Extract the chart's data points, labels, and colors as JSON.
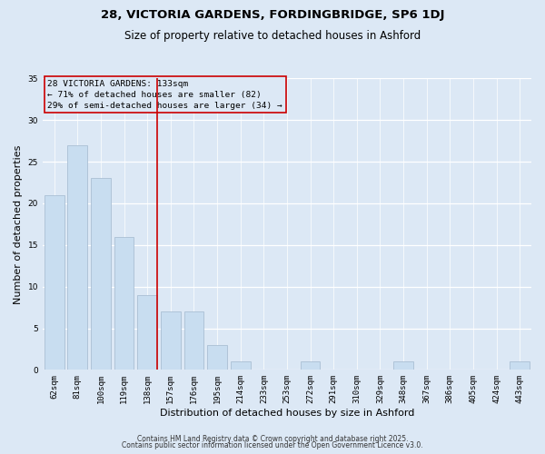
{
  "title1": "28, VICTORIA GARDENS, FORDINGBRIDGE, SP6 1DJ",
  "title2": "Size of property relative to detached houses in Ashford",
  "xlabel": "Distribution of detached houses by size in Ashford",
  "ylabel": "Number of detached properties",
  "categories": [
    "62sqm",
    "81sqm",
    "100sqm",
    "119sqm",
    "138sqm",
    "157sqm",
    "176sqm",
    "195sqm",
    "214sqm",
    "233sqm",
    "253sqm",
    "272sqm",
    "291sqm",
    "310sqm",
    "329sqm",
    "348sqm",
    "367sqm",
    "386sqm",
    "405sqm",
    "424sqm",
    "443sqm"
  ],
  "values": [
    21,
    27,
    23,
    16,
    9,
    7,
    7,
    3,
    1,
    0,
    0,
    1,
    0,
    0,
    0,
    1,
    0,
    0,
    0,
    0,
    1
  ],
  "bar_color": "#c8ddf0",
  "bar_edge_color": "#aabfd4",
  "highlight_index": 4,
  "highlight_line_color": "#cc0000",
  "annotation_box_edge_color": "#cc0000",
  "annotation_lines": [
    "28 VICTORIA GARDENS: 133sqm",
    "← 71% of detached houses are smaller (82)",
    "29% of semi-detached houses are larger (34) →"
  ],
  "ylim": [
    0,
    35
  ],
  "yticks": [
    0,
    5,
    10,
    15,
    20,
    25,
    30,
    35
  ],
  "background_color": "#dce8f5",
  "footer1": "Contains HM Land Registry data © Crown copyright and database right 2025.",
  "footer2": "Contains public sector information licensed under the Open Government Licence v3.0.",
  "title_fontsize": 9.5,
  "subtitle_fontsize": 8.5,
  "tick_fontsize": 6.5,
  "ylabel_fontsize": 8,
  "xlabel_fontsize": 8,
  "annotation_fontsize": 6.8,
  "footer_fontsize": 5.5
}
